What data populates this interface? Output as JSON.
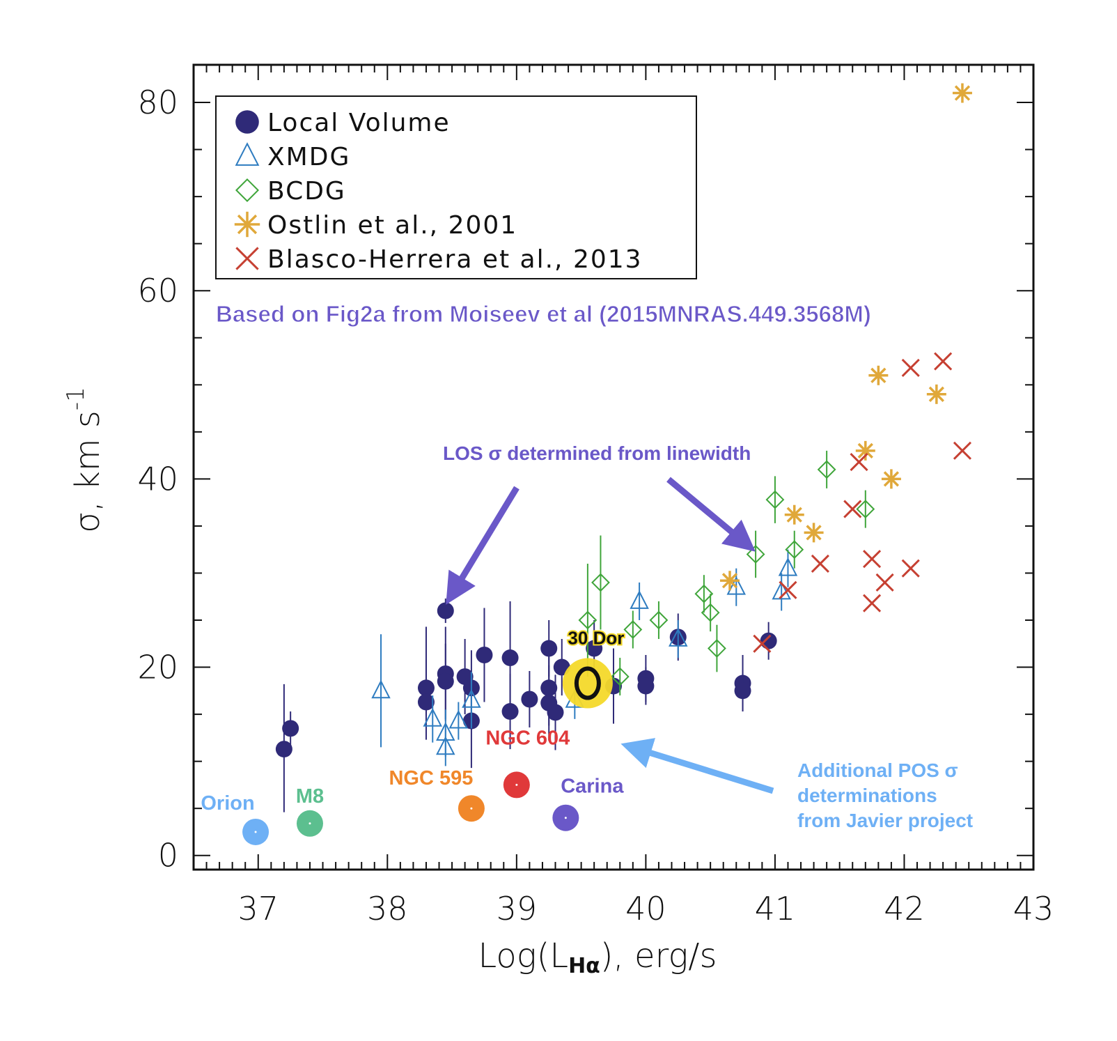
{
  "colors": {
    "local_volume": "#2f2a78",
    "xmdg": "#2e7cc0",
    "bcdg": "#3fa53a",
    "ostlin": "#e0a83a",
    "blasco": "#c64032",
    "annotation_purple": "#6a58c8",
    "annotation_blue": "#6eb0f5",
    "highlight_yellow": "#f4d92a"
  },
  "chart_data": {
    "type": "scatter",
    "xlabel_main": "Log(L",
    "xlabel_sub": "Hα",
    "xlabel_tail": "), erg/s",
    "ylabel_main": "σ,  km  s",
    "ylabel_sup": "-1",
    "xlim": [
      36.5,
      43
    ],
    "ylim": [
      -1.5,
      84
    ],
    "xticks": [
      37,
      38,
      39,
      40,
      41,
      42,
      43
    ],
    "yticks": [
      0,
      20,
      40,
      60,
      80
    ],
    "xtick_labels": [
      "37",
      "38",
      "39",
      "40",
      "41",
      "42",
      "43"
    ],
    "ytick_labels": [
      "0",
      "20",
      "40",
      "60",
      "80"
    ],
    "legend_placement": "top-left",
    "legend": [
      {
        "key": "local_volume",
        "label": "Local Volume",
        "marker": "filled-circle"
      },
      {
        "key": "xmdg",
        "label": "XMDG",
        "marker": "open-triangle"
      },
      {
        "key": "bcdg",
        "label": "BCDG",
        "marker": "open-diamond"
      },
      {
        "key": "ostlin",
        "label": "Ostlin et al., 2001",
        "marker": "asterisk"
      },
      {
        "key": "blasco",
        "label": "Blasco-Herrera et al., 2013",
        "marker": "cross"
      }
    ],
    "series": [
      {
        "name": "Local Volume",
        "key": "local_volume",
        "points": [
          {
            "x": 37.2,
            "y": 11.3,
            "lo": 4.6,
            "hi": 18.2
          },
          {
            "x": 37.25,
            "y": 13.5,
            "lo": 11.7,
            "hi": 15.3
          },
          {
            "x": 38.3,
            "y": 17.8,
            "lo": 14.8,
            "hi": 20.8
          },
          {
            "x": 38.3,
            "y": 16.3,
            "lo": 12.3,
            "hi": 24.3
          },
          {
            "x": 38.45,
            "y": 26.0,
            "lo": 24.7,
            "hi": 27.3
          },
          {
            "x": 38.45,
            "y": 19.3,
            "lo": 14.3,
            "hi": 24.3
          },
          {
            "x": 38.45,
            "y": 18.5,
            "lo": 14.5,
            "hi": 22.5
          },
          {
            "x": 38.6,
            "y": 19.0,
            "lo": 15.0,
            "hi": 23.0
          },
          {
            "x": 38.65,
            "y": 17.8,
            "lo": 13.8,
            "hi": 21.8
          },
          {
            "x": 38.65,
            "y": 14.3,
            "lo": 9.3,
            "hi": 19.3
          },
          {
            "x": 38.75,
            "y": 21.3,
            "lo": 16.3,
            "hi": 26.3
          },
          {
            "x": 38.95,
            "y": 21.0,
            "lo": 15.0,
            "hi": 27.0
          },
          {
            "x": 38.95,
            "y": 15.3,
            "lo": 11.3,
            "hi": 19.3
          },
          {
            "x": 39.1,
            "y": 16.6,
            "lo": 13.6,
            "hi": 19.6
          },
          {
            "x": 39.25,
            "y": 22.0,
            "lo": 19.0,
            "hi": 25.0
          },
          {
            "x": 39.25,
            "y": 17.8,
            "lo": 13.8,
            "hi": 21.8
          },
          {
            "x": 39.25,
            "y": 16.2,
            "lo": 12.2,
            "hi": 20.2
          },
          {
            "x": 39.3,
            "y": 15.2,
            "lo": 11.2,
            "hi": 19.2
          },
          {
            "x": 39.35,
            "y": 20.0,
            "lo": 17.0,
            "hi": 23.0
          },
          {
            "x": 39.6,
            "y": 22.0,
            "lo": 19.0,
            "hi": 25.0
          },
          {
            "x": 39.75,
            "y": 18.0,
            "lo": 14.0,
            "hi": 22.0
          },
          {
            "x": 40.0,
            "y": 18.8,
            "lo": 16.3,
            "hi": 21.3
          },
          {
            "x": 40.0,
            "y": 18.0,
            "lo": 16.0,
            "hi": 20.0
          },
          {
            "x": 40.25,
            "y": 23.2,
            "lo": 20.7,
            "hi": 25.7
          },
          {
            "x": 40.75,
            "y": 18.3,
            "lo": 15.3,
            "hi": 21.3
          },
          {
            "x": 40.75,
            "y": 17.5,
            "lo": 15.3,
            "hi": 19.7
          },
          {
            "x": 40.95,
            "y": 22.8,
            "lo": 20.8,
            "hi": 24.8
          }
        ]
      },
      {
        "name": "XMDG",
        "key": "xmdg",
        "points": [
          {
            "x": 37.95,
            "y": 17.5,
            "lo": 11.5,
            "hi": 23.5
          },
          {
            "x": 38.35,
            "y": 14.5,
            "lo": 12.0,
            "hi": 17.0
          },
          {
            "x": 38.45,
            "y": 13.0,
            "lo": 10.5,
            "hi": 15.5
          },
          {
            "x": 38.45,
            "y": 11.5,
            "lo": 9.5,
            "hi": 13.5
          },
          {
            "x": 38.55,
            "y": 14.3,
            "lo": 12.3,
            "hi": 16.3
          },
          {
            "x": 38.65,
            "y": 16.5,
            "lo": 13.5,
            "hi": 19.5
          },
          {
            "x": 39.45,
            "y": 16.5,
            "lo": 14.5,
            "hi": 18.5
          },
          {
            "x": 39.95,
            "y": 27.0,
            "lo": 25.0,
            "hi": 29.0
          },
          {
            "x": 40.25,
            "y": 23.0,
            "lo": 21.0,
            "hi": 25.0
          },
          {
            "x": 40.7,
            "y": 28.5,
            "lo": 26.5,
            "hi": 30.5
          },
          {
            "x": 41.05,
            "y": 28.0,
            "lo": 26.0,
            "hi": 30.0
          },
          {
            "x": 41.1,
            "y": 30.5,
            "lo": 28.5,
            "hi": 32.5
          }
        ]
      },
      {
        "name": "BCDG",
        "key": "bcdg",
        "points": [
          {
            "x": 39.55,
            "y": 25.0,
            "lo": 19.0,
            "hi": 31.0
          },
          {
            "x": 39.65,
            "y": 29.0,
            "lo": 24.0,
            "hi": 34.0
          },
          {
            "x": 39.8,
            "y": 19.0,
            "lo": 17.0,
            "hi": 21.0
          },
          {
            "x": 39.9,
            "y": 24.0,
            "lo": 22.0,
            "hi": 26.0
          },
          {
            "x": 40.1,
            "y": 25.0,
            "lo": 23.0,
            "hi": 27.0
          },
          {
            "x": 40.45,
            "y": 27.8,
            "lo": 25.8,
            "hi": 29.8
          },
          {
            "x": 40.5,
            "y": 25.8,
            "lo": 23.8,
            "hi": 27.8
          },
          {
            "x": 40.55,
            "y": 22.0,
            "lo": 19.5,
            "hi": 24.5
          },
          {
            "x": 40.85,
            "y": 32.0,
            "lo": 29.5,
            "hi": 34.5
          },
          {
            "x": 41.0,
            "y": 37.8,
            "lo": 35.3,
            "hi": 40.3
          },
          {
            "x": 41.15,
            "y": 32.5,
            "lo": 30.5,
            "hi": 34.5
          },
          {
            "x": 41.4,
            "y": 41.0,
            "lo": 39.0,
            "hi": 43.0
          },
          {
            "x": 41.7,
            "y": 36.8,
            "lo": 34.8,
            "hi": 38.8
          }
        ]
      },
      {
        "name": "Ostlin et al., 2001",
        "key": "ostlin",
        "points": [
          {
            "x": 40.65,
            "y": 29.2
          },
          {
            "x": 41.15,
            "y": 36.2
          },
          {
            "x": 41.3,
            "y": 34.3
          },
          {
            "x": 41.7,
            "y": 43.0
          },
          {
            "x": 41.8,
            "y": 51.0
          },
          {
            "x": 41.9,
            "y": 40.0
          },
          {
            "x": 42.25,
            "y": 49.0
          },
          {
            "x": 42.45,
            "y": 81.0
          }
        ]
      },
      {
        "name": "Blasco-Herrera et al., 2013",
        "key": "blasco",
        "points": [
          {
            "x": 40.9,
            "y": 22.5
          },
          {
            "x": 41.1,
            "y": 28.2
          },
          {
            "x": 41.35,
            "y": 31.0
          },
          {
            "x": 41.6,
            "y": 36.8
          },
          {
            "x": 41.65,
            "y": 41.8
          },
          {
            "x": 41.75,
            "y": 31.5
          },
          {
            "x": 41.75,
            "y": 26.8
          },
          {
            "x": 41.85,
            "y": 29.0
          },
          {
            "x": 42.05,
            "y": 51.8
          },
          {
            "x": 42.05,
            "y": 30.5
          },
          {
            "x": 42.3,
            "y": 52.5
          },
          {
            "x": 42.45,
            "y": 43.0
          }
        ]
      }
    ],
    "highlights": [
      {
        "label": "Orion",
        "x": 36.98,
        "y": 2.5,
        "color": "#6eb0f5"
      },
      {
        "label": "M8",
        "x": 37.4,
        "y": 3.4,
        "color": "#5cbf8f"
      },
      {
        "label": "NGC 595",
        "x": 38.65,
        "y": 5.0,
        "color": "#f0872a"
      },
      {
        "label": "NGC 604",
        "x": 39.0,
        "y": 7.5,
        "color": "#e0393a"
      },
      {
        "label": "Carina",
        "x": 39.38,
        "y": 4.0,
        "color": "#6a58c8"
      }
    ],
    "special_point": {
      "label": "30 Dor",
      "x": 39.55,
      "y": 18.3
    }
  },
  "annotations": {
    "source_note": "Based on Fig2a from Moiseev et al (2015MNRAS.449.3568M)",
    "los_note": "LOS σ determined from linewidth",
    "pos_note_lines": [
      "Additional POS σ",
      "determinations",
      "from Javier project"
    ]
  }
}
